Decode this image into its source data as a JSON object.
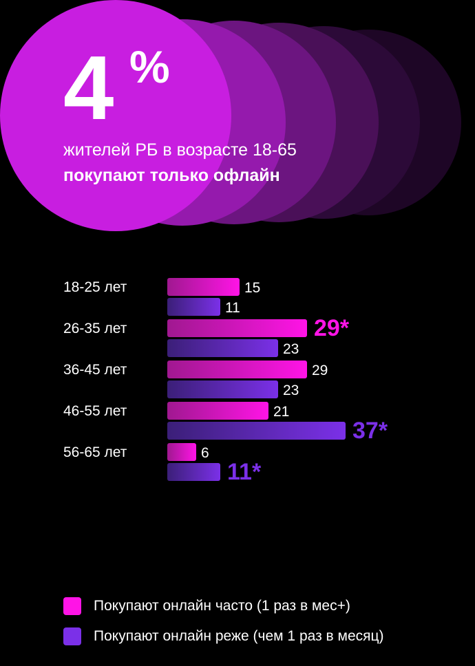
{
  "hero": {
    "number": "4",
    "percent_sign": "%",
    "line1": "жителей РБ в возрасте 18-65",
    "line2": "покупают только офлайн"
  },
  "colors": {
    "frequent": "#ff14e6",
    "frequent_dark": "#a01890",
    "rare": "#7b30e8",
    "rare_dark": "#3b1f78",
    "background": "#000000",
    "hero_circle": "#c81ee0"
  },
  "chart_data": {
    "type": "bar",
    "orientation": "horizontal",
    "categories": [
      "18-25 лет",
      "26-35 лет",
      "36-45 лет",
      "46-55 лет",
      "56-65 лет"
    ],
    "series": [
      {
        "name": "Покупают онлайн часто (1 раз в мес+)",
        "values": [
          15,
          29,
          29,
          21,
          6
        ],
        "labels": [
          "15",
          "29*",
          "29",
          "21",
          "6"
        ],
        "highlight": [
          false,
          true,
          false,
          false,
          false
        ]
      },
      {
        "name": "Покупают онлайн реже (чем 1 раз в месяц)",
        "values": [
          11,
          23,
          23,
          37,
          11
        ],
        "labels": [
          "11",
          "23",
          "23",
          "37*",
          "11*"
        ],
        "highlight": [
          false,
          false,
          false,
          true,
          true
        ]
      }
    ],
    "xlim": [
      0,
      37
    ],
    "grid": false,
    "legend": "bottom-left"
  }
}
